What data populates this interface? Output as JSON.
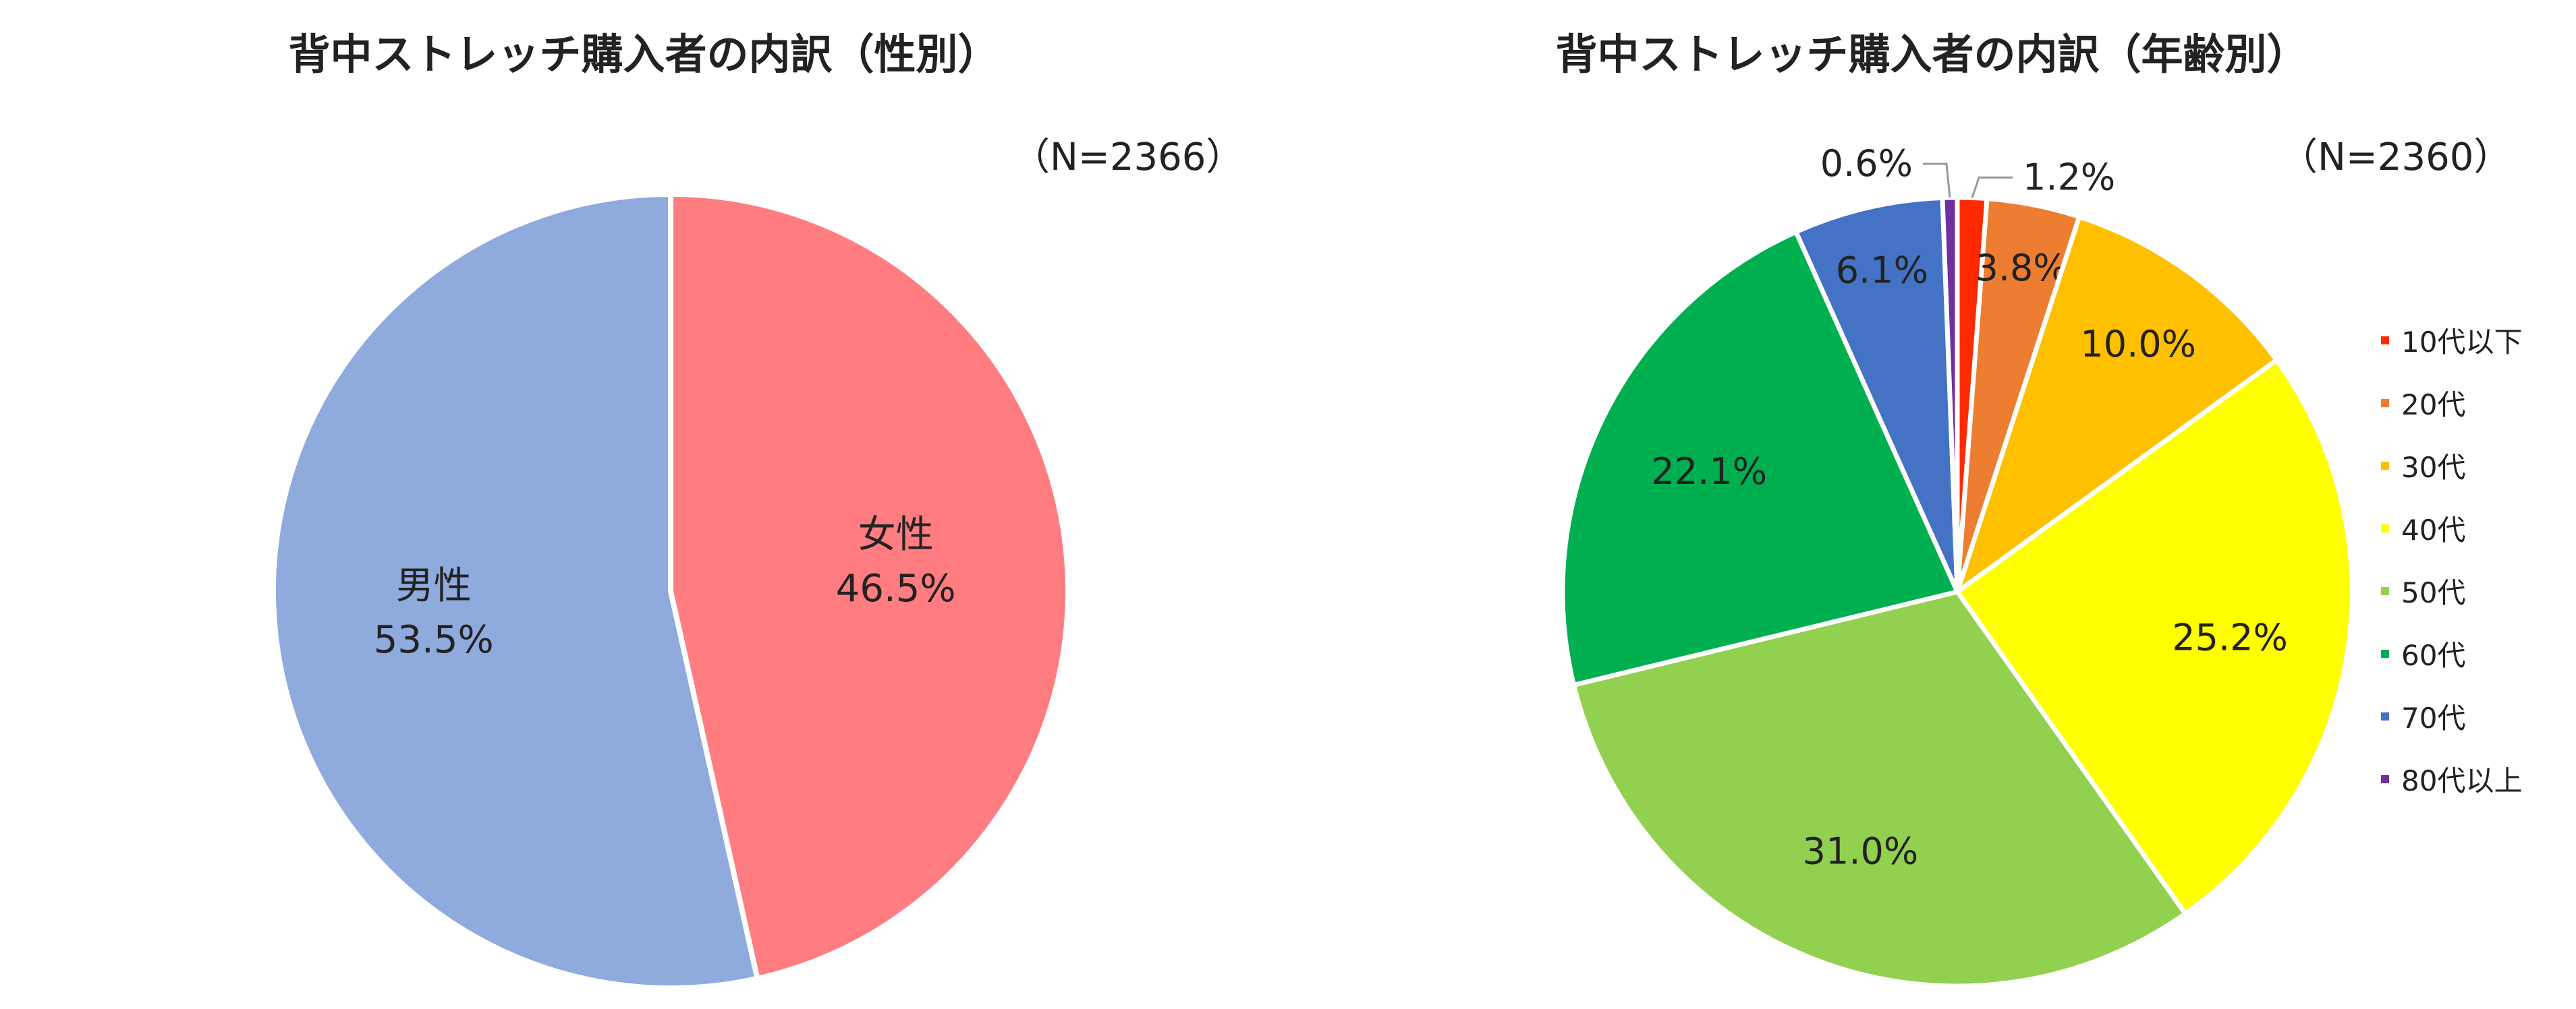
{
  "chart_data": [
    {
      "type": "pie",
      "title": "背中ストレッチ購入者の内訳（性別）",
      "note": "（N=2366）",
      "slices": [
        {
          "name": "女性",
          "value": 46.5,
          "label": "46.5%",
          "color": "#FF7C80"
        },
        {
          "name": "男性",
          "value": 53.5,
          "label": "53.5%",
          "color": "#8FAADC"
        }
      ],
      "legend": "none"
    },
    {
      "type": "pie",
      "title": "背中ストレッチ購入者の内訳（年齢別）",
      "note": "（N=2360）",
      "slices": [
        {
          "name": "10代以下",
          "value": 1.2,
          "label": "1.2%",
          "color": "#FF2A00"
        },
        {
          "name": "20代",
          "value": 3.8,
          "label": "3.8%",
          "color": "#ED7D31"
        },
        {
          "name": "30代",
          "value": 10.0,
          "label": "10.0%",
          "color": "#FFC000"
        },
        {
          "name": "40代",
          "value": 25.2,
          "label": "25.2%",
          "color": "#FFFF00"
        },
        {
          "name": "50代",
          "value": 31.0,
          "label": "31.0%",
          "color": "#92D050"
        },
        {
          "name": "60代",
          "value": 22.1,
          "label": "22.1%",
          "color": "#00B050"
        },
        {
          "name": "70代",
          "value": 6.1,
          "label": "6.1%",
          "color": "#4472C4"
        },
        {
          "name": "80代以上",
          "value": 0.6,
          "label": "0.6%",
          "color": "#7030A0"
        }
      ],
      "legend": "right"
    }
  ]
}
